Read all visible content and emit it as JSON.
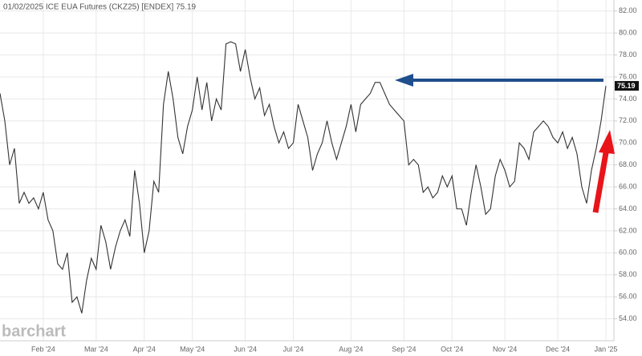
{
  "chart_data": {
    "type": "line",
    "title": "01/02/2025 ICE EUA Futures (CKZ25) [ENDEX] 75.19",
    "brand": "barchart",
    "color": "#333333",
    "grid": true,
    "categories": [
      null,
      null,
      null,
      null,
      null,
      null,
      null,
      null,
      null,
      "Feb '24",
      null,
      null,
      null,
      null,
      null,
      null,
      null,
      null,
      null,
      null,
      "Mar '24",
      null,
      null,
      null,
      null,
      null,
      null,
      null,
      null,
      null,
      "Apr '24",
      null,
      null,
      null,
      null,
      null,
      null,
      null,
      null,
      null,
      "May '24",
      null,
      null,
      null,
      null,
      null,
      null,
      null,
      null,
      null,
      null,
      "Jun '24",
      null,
      null,
      null,
      null,
      null,
      null,
      null,
      null,
      null,
      "Jul '24",
      null,
      null,
      null,
      null,
      null,
      null,
      null,
      null,
      null,
      null,
      null,
      "Aug '24",
      null,
      null,
      null,
      null,
      null,
      null,
      null,
      null,
      null,
      null,
      "Sep '24",
      null,
      null,
      null,
      null,
      null,
      null,
      null,
      null,
      null,
      "Oct '24",
      null,
      null,
      null,
      null,
      null,
      null,
      null,
      null,
      null,
      null,
      "Nov '24",
      null,
      null,
      null,
      null,
      null,
      null,
      null,
      null,
      null,
      null,
      "Dec '24",
      null,
      null,
      null,
      null,
      null,
      null,
      null,
      null,
      null,
      "Jan '25"
    ],
    "values": [
      74.5,
      72,
      68,
      69.5,
      64.5,
      65.5,
      64.5,
      65,
      64,
      65.5,
      63,
      62,
      59,
      58.5,
      60,
      55.5,
      56,
      54.5,
      57.5,
      59.5,
      58.5,
      62.5,
      61,
      58.5,
      60.5,
      62,
      63,
      61.5,
      67.5,
      64.5,
      60,
      62,
      66.5,
      65.5,
      73.5,
      76.5,
      74,
      70.5,
      69,
      71.5,
      73,
      76,
      73,
      75.5,
      72,
      74,
      73,
      79,
      79.2,
      79,
      76.5,
      78.5,
      76,
      74,
      75,
      72.5,
      73.5,
      71.5,
      70,
      71,
      69.5,
      70,
      73.5,
      72,
      70.5,
      67.5,
      69,
      70,
      72,
      70,
      68.5,
      70,
      71.5,
      73.5,
      71,
      73.5,
      74,
      74.5,
      75.5,
      75.5,
      74.5,
      73.5,
      73,
      72.5,
      72,
      68,
      68.5,
      68,
      65.5,
      66,
      65,
      65.5,
      67,
      66,
      67,
      64,
      64,
      62.5,
      65.5,
      68,
      66,
      63.5,
      64,
      67,
      68.5,
      67.5,
      66,
      66.5,
      70,
      69.5,
      68.5,
      71,
      71.5,
      72,
      71.5,
      70.5,
      70,
      71,
      69.5,
      70.5,
      69,
      66,
      64.5,
      67.5,
      69.5,
      72,
      75.19
    ],
    "ylim": [
      52,
      83
    ],
    "yticks": [
      {
        "value": 54,
        "label": "54.00"
      },
      {
        "value": 56,
        "label": "56.00"
      },
      {
        "value": 58,
        "label": "58.00"
      },
      {
        "value": 60,
        "label": "60.00"
      },
      {
        "value": 62,
        "label": "62.00"
      },
      {
        "value": 64,
        "label": "64.00"
      },
      {
        "value": 66,
        "label": "66.00"
      },
      {
        "value": 68,
        "label": "68.00"
      },
      {
        "value": 70,
        "label": "70.00"
      },
      {
        "value": 72,
        "label": "72.00"
      },
      {
        "value": 74,
        "label": "74.00"
      },
      {
        "value": 76,
        "label": "76.00"
      },
      {
        "value": 78,
        "label": "78.00"
      },
      {
        "value": 80,
        "label": "80.00"
      },
      {
        "value": 82,
        "label": "82.00"
      }
    ]
  }
}
